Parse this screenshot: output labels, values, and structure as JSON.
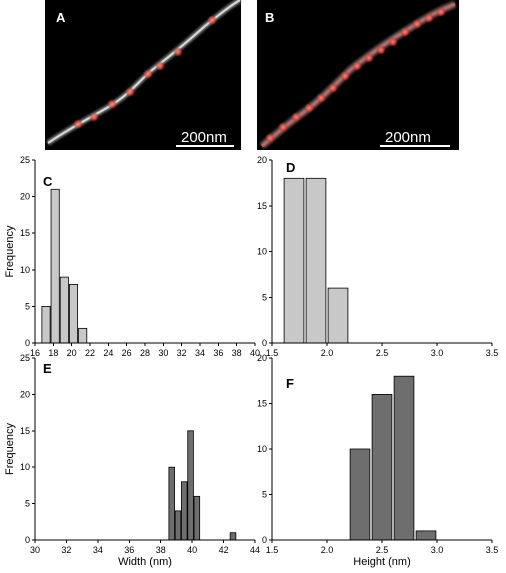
{
  "images": [
    {
      "label": "A",
      "scale_text": "200nm"
    },
    {
      "label": "B",
      "scale_text": "200nm"
    }
  ],
  "chart_data": [
    {
      "panel": "C",
      "type": "bar",
      "x": [
        17.2,
        18.2,
        19.2,
        20.2,
        21.2
      ],
      "values": [
        5,
        21,
        9,
        8,
        2
      ],
      "bar_width": 0.9,
      "bar_color": "#c8c8c8",
      "xlim": [
        16,
        40
      ],
      "xticks": [
        16,
        18,
        20,
        22,
        24,
        26,
        28,
        30,
        32,
        34,
        36,
        38,
        40
      ],
      "ylim": [
        0,
        25
      ],
      "yticks": [
        0,
        5,
        10,
        15,
        20,
        25
      ],
      "xlabel": "",
      "ylabel": "Frequency"
    },
    {
      "panel": "D",
      "type": "bar",
      "x": [
        1.7,
        1.9,
        2.1
      ],
      "values": [
        18,
        18,
        6
      ],
      "bar_width": 0.18,
      "bar_color": "#c8c8c8",
      "xlim": [
        1.5,
        3.5
      ],
      "xticks": [
        "1.5",
        "2.0",
        "2.5",
        "3.0",
        "3.5"
      ],
      "ylim": [
        0,
        20
      ],
      "yticks": [
        0,
        5,
        10,
        15,
        20
      ],
      "xlabel": "",
      "ylabel": ""
    },
    {
      "panel": "E",
      "type": "bar",
      "x": [
        38.7,
        39.1,
        39.5,
        39.9,
        40.3,
        42.6
      ],
      "values": [
        10,
        4,
        8,
        15,
        6,
        1
      ],
      "bar_width": 0.36,
      "bar_color": "#6e6e6e",
      "xlim": [
        30,
        44
      ],
      "xticks": [
        30,
        32,
        34,
        36,
        38,
        40,
        42,
        44
      ],
      "ylim": [
        0,
        25
      ],
      "yticks": [
        0,
        5,
        10,
        15,
        20,
        25
      ],
      "xlabel": "Width (nm)",
      "ylabel": "Frequency"
    },
    {
      "panel": "F",
      "type": "bar",
      "x": [
        2.3,
        2.5,
        2.7,
        2.9
      ],
      "values": [
        10,
        16,
        18,
        1
      ],
      "bar_width": 0.18,
      "bar_color": "#6e6e6e",
      "xlim": [
        1.5,
        3.5
      ],
      "xticks": [
        "1.5",
        "2.0",
        "2.5",
        "3.0",
        "3.5"
      ],
      "ylim": [
        0,
        20
      ],
      "yticks": [
        0,
        5,
        10,
        15,
        20
      ],
      "xlabel": "Height (nm)",
      "ylabel": ""
    }
  ]
}
